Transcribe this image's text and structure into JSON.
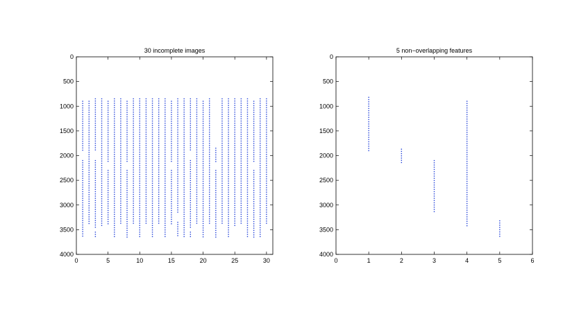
{
  "chart_data": [
    {
      "type": "scatter",
      "title": "30 incomplete images",
      "xlabel": "",
      "ylabel": "",
      "xlim": [
        0,
        31
      ],
      "ylim": [
        0,
        4000
      ],
      "y_reversed": true,
      "xticks": [
        "0",
        "5",
        "10",
        "15",
        "20",
        "25",
        "30"
      ],
      "xtick_values": [
        0,
        5,
        10,
        15,
        20,
        25,
        30
      ],
      "yticks": [
        "0",
        "500",
        "1000",
        "1500",
        "2000",
        "2500",
        "3000",
        "3500",
        "4000"
      ],
      "ytick_values": [
        0,
        500,
        1000,
        1500,
        2000,
        2500,
        3000,
        3500,
        4000
      ],
      "grid": false,
      "marker_color": "#1f3fd8",
      "columns": [
        {
          "x": 1,
          "ranges": [
            [
              900,
              1900
            ],
            [
              2100,
              3650
            ]
          ]
        },
        {
          "x": 2,
          "ranges": [
            [
              900,
              3400
            ]
          ]
        },
        {
          "x": 3,
          "ranges": [
            [
              850,
              1900
            ],
            [
              2100,
              3450
            ],
            [
              3550,
              3650
            ]
          ]
        },
        {
          "x": 4,
          "ranges": [
            [
              850,
              3450
            ]
          ]
        },
        {
          "x": 5,
          "ranges": [
            [
              900,
              2150
            ],
            [
              2300,
              3400
            ]
          ]
        },
        {
          "x": 6,
          "ranges": [
            [
              850,
              3650
            ]
          ]
        },
        {
          "x": 7,
          "ranges": [
            [
              850,
              3400
            ]
          ]
        },
        {
          "x": 8,
          "ranges": [
            [
              900,
              2150
            ],
            [
              2300,
              3650
            ]
          ]
        },
        {
          "x": 9,
          "ranges": [
            [
              850,
              3400
            ]
          ]
        },
        {
          "x": 10,
          "ranges": [
            [
              850,
              3650
            ]
          ]
        },
        {
          "x": 11,
          "ranges": [
            [
              850,
              3400
            ]
          ]
        },
        {
          "x": 12,
          "ranges": [
            [
              850,
              3650
            ]
          ]
        },
        {
          "x": 13,
          "ranges": [
            [
              850,
              3400
            ]
          ]
        },
        {
          "x": 14,
          "ranges": [
            [
              850,
              3650
            ]
          ]
        },
        {
          "x": 15,
          "ranges": [
            [
              900,
              2150
            ],
            [
              2300,
              3400
            ]
          ]
        },
        {
          "x": 16,
          "ranges": [
            [
              850,
              3150
            ],
            [
              3350,
              3650
            ]
          ]
        },
        {
          "x": 17,
          "ranges": [
            [
              850,
              3650
            ]
          ]
        },
        {
          "x": 18,
          "ranges": [
            [
              850,
              1900
            ],
            [
              2100,
              3450
            ],
            [
              3550,
              3650
            ]
          ]
        },
        {
          "x": 19,
          "ranges": [
            [
              850,
              3400
            ]
          ]
        },
        {
          "x": 20,
          "ranges": [
            [
              900,
              3650
            ]
          ]
        },
        {
          "x": 21,
          "ranges": [
            [
              850,
              3400
            ]
          ]
        },
        {
          "x": 22,
          "ranges": [
            [
              1850,
              2150
            ],
            [
              2300,
              3650
            ]
          ]
        },
        {
          "x": 23,
          "ranges": [
            [
              850,
              3400
            ]
          ]
        },
        {
          "x": 24,
          "ranges": [
            [
              850,
              3650
            ]
          ]
        },
        {
          "x": 25,
          "ranges": [
            [
              850,
              3450
            ]
          ]
        },
        {
          "x": 26,
          "ranges": [
            [
              850,
              3400
            ]
          ]
        },
        {
          "x": 27,
          "ranges": [
            [
              850,
              3650
            ]
          ]
        },
        {
          "x": 28,
          "ranges": [
            [
              900,
              2150
            ],
            [
              2300,
              3650
            ]
          ]
        },
        {
          "x": 29,
          "ranges": [
            [
              850,
              3650
            ]
          ]
        },
        {
          "x": 30,
          "ranges": [
            [
              850,
              3400
            ]
          ]
        }
      ]
    },
    {
      "type": "scatter",
      "title": "5 non−overlapping features",
      "xlabel": "",
      "ylabel": "",
      "xlim": [
        0,
        6
      ],
      "ylim": [
        0,
        4000
      ],
      "y_reversed": true,
      "xticks": [
        "0",
        "1",
        "2",
        "3",
        "4",
        "5",
        "6"
      ],
      "xtick_values": [
        0,
        1,
        2,
        3,
        4,
        5,
        6
      ],
      "yticks": [
        "0",
        "500",
        "1000",
        "1500",
        "2000",
        "2500",
        "3000",
        "3500",
        "4000"
      ],
      "ytick_values": [
        0,
        500,
        1000,
        1500,
        2000,
        2500,
        3000,
        3500,
        4000
      ],
      "grid": false,
      "marker_color": "#1f3fd8",
      "columns": [
        {
          "x": 1,
          "ranges": [
            [
              820,
              1900
            ]
          ]
        },
        {
          "x": 2,
          "ranges": [
            [
              1870,
              2150
            ]
          ]
        },
        {
          "x": 3,
          "ranges": [
            [
              2100,
              3150
            ]
          ]
        },
        {
          "x": 4,
          "ranges": [
            [
              900,
              3450
            ]
          ]
        },
        {
          "x": 5,
          "ranges": [
            [
              3320,
              3650
            ]
          ]
        }
      ]
    }
  ]
}
